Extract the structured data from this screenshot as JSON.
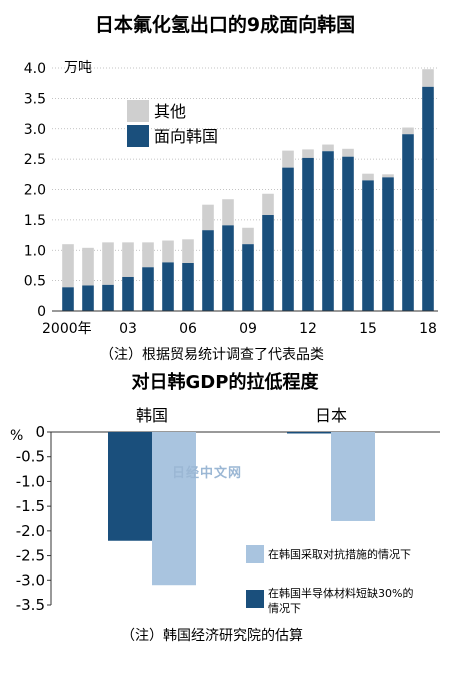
{
  "colors": {
    "navy": "#1a4f7c",
    "light_gray": "#cfcfcf",
    "light_blue": "#a9c4df",
    "text": "#111111"
  },
  "watermark": "日经中文网",
  "chart_data": [
    {
      "type": "bar",
      "stacked": true,
      "title": "日本氟化氢出口的9成面向韩国",
      "ylabel": "万吨",
      "ylim": [
        0,
        4.0
      ],
      "yticks": [
        "4.0",
        "3.5",
        "3.0",
        "2.5",
        "2.0",
        "1.5",
        "1.0",
        "0.5",
        "0"
      ],
      "xtick_labels": [
        {
          "index": 0,
          "label": "2000年"
        },
        {
          "index": 3,
          "label": "03"
        },
        {
          "index": 6,
          "label": "06"
        },
        {
          "index": 9,
          "label": "09"
        },
        {
          "index": 12,
          "label": "12"
        },
        {
          "index": 15,
          "label": "15"
        },
        {
          "index": 18,
          "label": "18"
        }
      ],
      "categories": [
        "2000",
        "2001",
        "2002",
        "2003",
        "2004",
        "2005",
        "2006",
        "2007",
        "2008",
        "2009",
        "2010",
        "2011",
        "2012",
        "2013",
        "2014",
        "2015",
        "2016",
        "2017",
        "2018"
      ],
      "series": [
        {
          "name": "面向韩国",
          "values": [
            0.39,
            0.42,
            0.43,
            0.56,
            0.72,
            0.8,
            0.79,
            1.33,
            1.41,
            1.1,
            1.58,
            2.36,
            2.52,
            2.63,
            2.54,
            2.15,
            2.2,
            2.91,
            3.69
          ]
        },
        {
          "name": "其他",
          "values": [
            0.71,
            0.62,
            0.7,
            0.57,
            0.41,
            0.36,
            0.39,
            0.42,
            0.43,
            0.27,
            0.35,
            0.28,
            0.14,
            0.11,
            0.13,
            0.11,
            0.05,
            0.11,
            0.29
          ]
        }
      ],
      "legend": [
        "其他",
        "面向韩国"
      ],
      "note": "（注）根据贸易统计调查了代表品类"
    },
    {
      "type": "bar",
      "title": "对日韩GDP的拉低程度",
      "ylabel": "%",
      "ylim": [
        -3.5,
        0
      ],
      "yticks": [
        "0",
        "-0.5",
        "-1.0",
        "-1.5",
        "-2.0",
        "-2.5",
        "-3.0",
        "-3.5"
      ],
      "categories": [
        "韩国",
        "日本"
      ],
      "series": [
        {
          "name": "在韩国半导体材料短缺30%的情况下",
          "values": [
            -2.2,
            -0.03
          ]
        },
        {
          "name": "在韩国采取对抗措施的情况下",
          "values": [
            -3.1,
            -1.8
          ]
        }
      ],
      "note": "（注）韩国经济研究院的估算"
    }
  ]
}
